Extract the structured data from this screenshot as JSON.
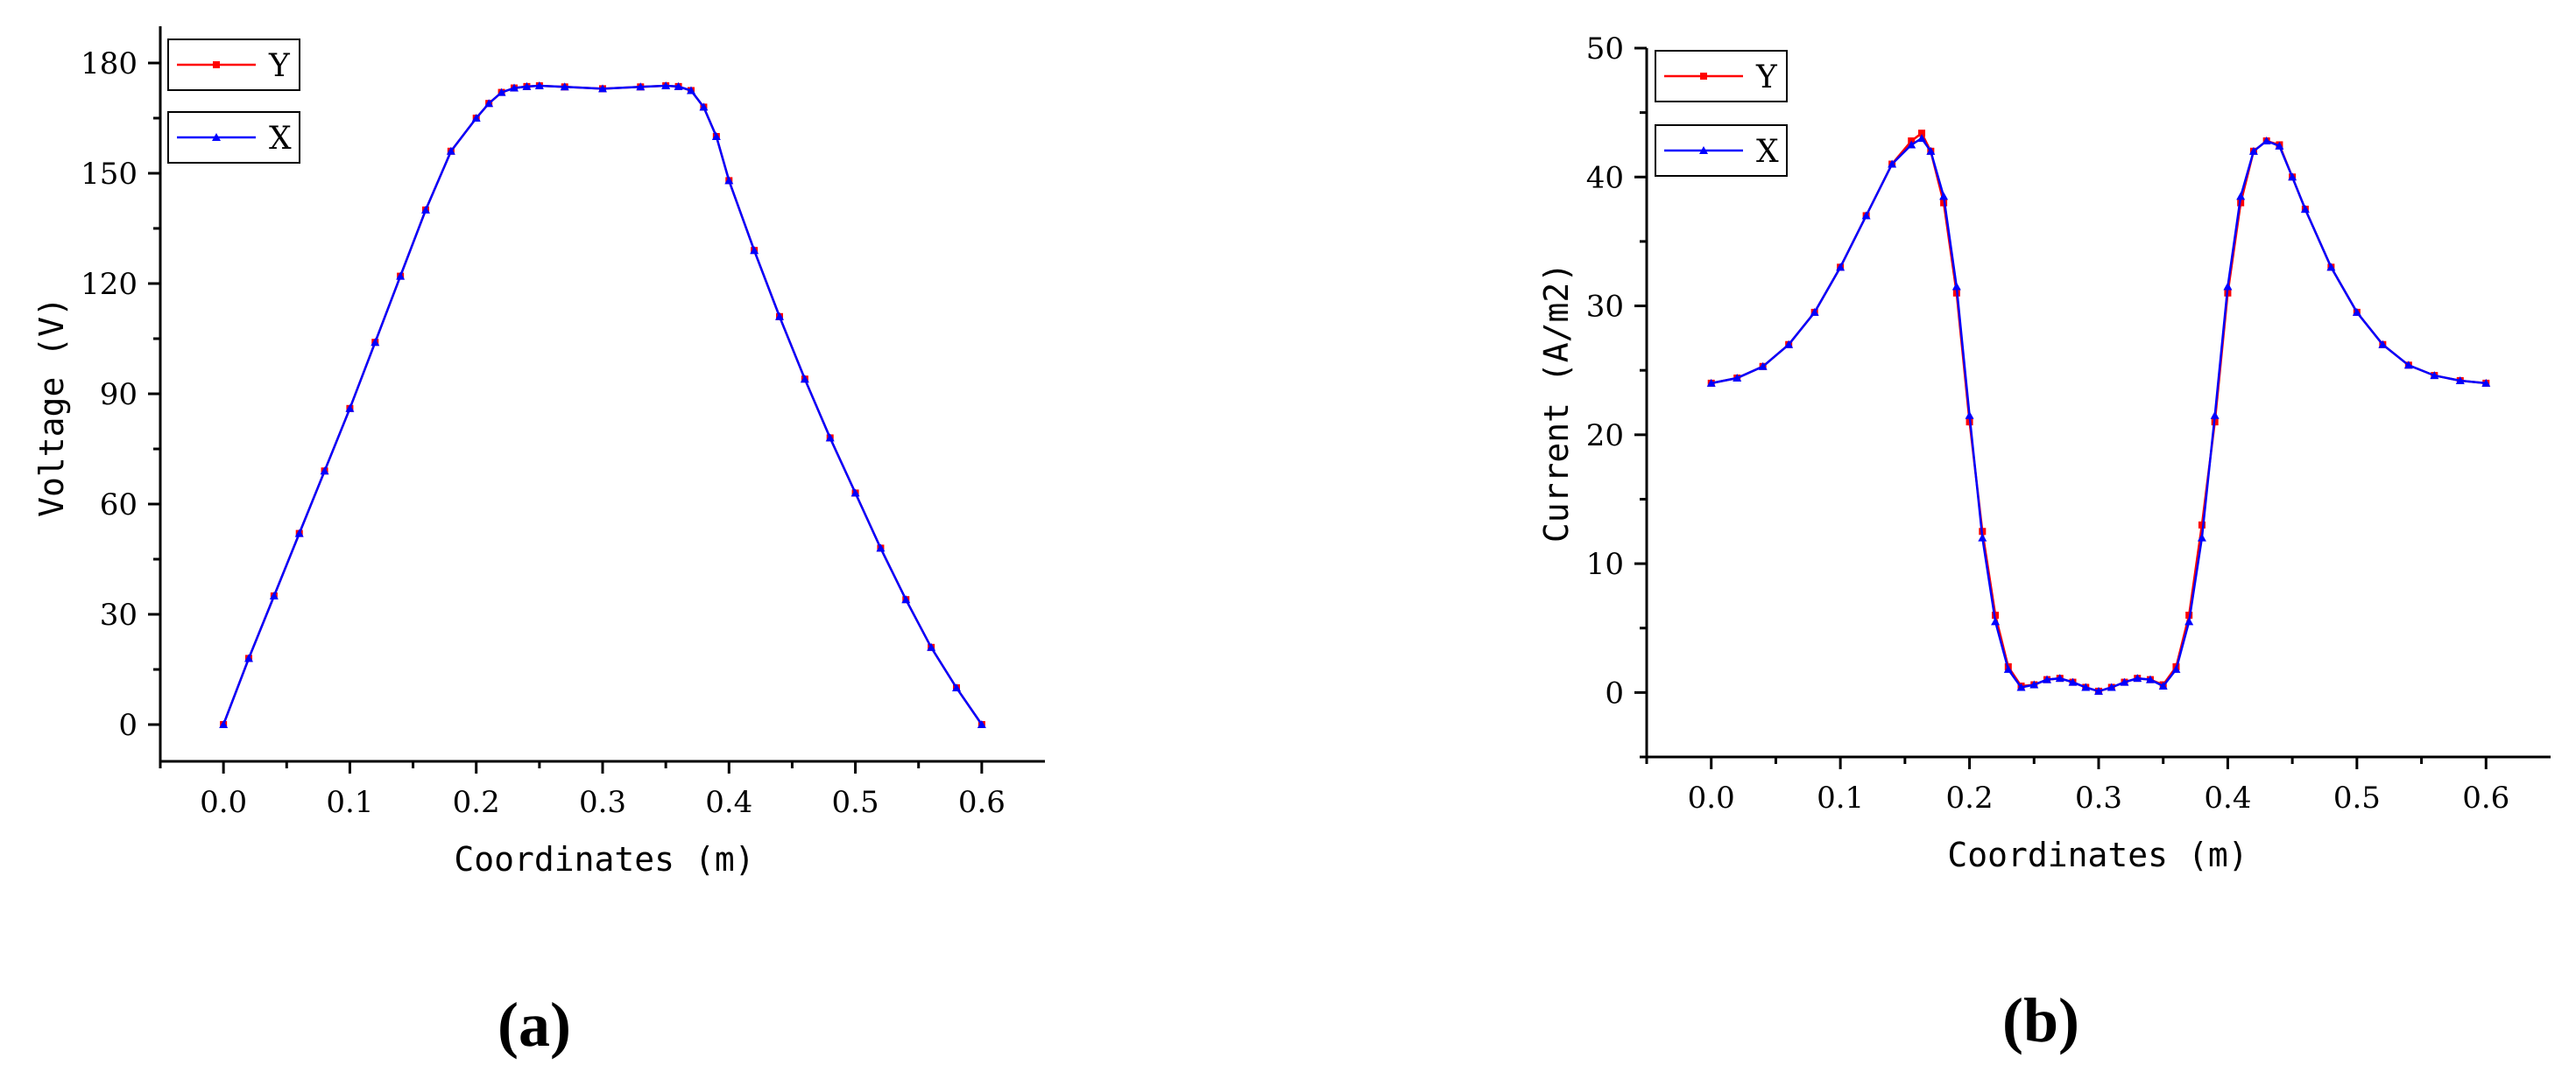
{
  "chart_data": [
    {
      "type": "line",
      "panel_label": "(a)",
      "xlabel": "Coordinates (m)",
      "ylabel": "Voltage (V)",
      "xlim": [
        -0.05,
        0.65
      ],
      "ylim": [
        -10,
        190
      ],
      "xticks": [
        0.0,
        0.1,
        0.2,
        0.3,
        0.4,
        0.5,
        0.6
      ],
      "xtick_labels": [
        "0.0",
        "0.1",
        "0.2",
        "0.3",
        "0.4",
        "0.5",
        "0.6"
      ],
      "yticks": [
        0,
        30,
        60,
        90,
        120,
        150,
        180
      ],
      "ytick_labels": [
        "0",
        "30",
        "60",
        "90",
        "120",
        "150",
        "180"
      ],
      "grid": false,
      "legend_position": "top-left",
      "series": [
        {
          "name": "Y",
          "color": "#ff0000",
          "marker": "square",
          "x": [
            0.0,
            0.02,
            0.04,
            0.06,
            0.08,
            0.1,
            0.12,
            0.14,
            0.16,
            0.18,
            0.2,
            0.21,
            0.22,
            0.23,
            0.24,
            0.25,
            0.27,
            0.3,
            0.33,
            0.35,
            0.36,
            0.37,
            0.38,
            0.39,
            0.4,
            0.42,
            0.44,
            0.46,
            0.48,
            0.5,
            0.52,
            0.54,
            0.56,
            0.58,
            0.6
          ],
          "y": [
            0,
            18,
            35,
            52,
            69,
            86,
            104,
            122,
            140,
            156,
            165,
            169,
            172,
            173.2,
            173.6,
            173.8,
            173.5,
            173,
            173.5,
            173.8,
            173.6,
            172.5,
            168,
            160,
            148,
            129,
            111,
            94,
            78,
            63,
            48,
            34,
            21,
            10,
            0
          ]
        },
        {
          "name": "X",
          "color": "#0000ff",
          "marker": "triangle",
          "x": [
            0.0,
            0.02,
            0.04,
            0.06,
            0.08,
            0.1,
            0.12,
            0.14,
            0.16,
            0.18,
            0.2,
            0.21,
            0.22,
            0.23,
            0.24,
            0.25,
            0.27,
            0.3,
            0.33,
            0.35,
            0.36,
            0.37,
            0.38,
            0.39,
            0.4,
            0.42,
            0.44,
            0.46,
            0.48,
            0.5,
            0.52,
            0.54,
            0.56,
            0.58,
            0.6
          ],
          "y": [
            0,
            18,
            35,
            52,
            69,
            86,
            104,
            122,
            140,
            156,
            165,
            169,
            172,
            173.2,
            173.6,
            173.8,
            173.5,
            173,
            173.5,
            173.8,
            173.6,
            172.5,
            168,
            160,
            148,
            129,
            111,
            94,
            78,
            63,
            48,
            34,
            21,
            10,
            0
          ]
        }
      ]
    },
    {
      "type": "line",
      "panel_label": "(b)",
      "xlabel": "Coordinates (m)",
      "ylabel": "Current (A/m2)",
      "xlim": [
        -0.05,
        0.65
      ],
      "ylim": [
        -5,
        50
      ],
      "xticks": [
        0.0,
        0.1,
        0.2,
        0.3,
        0.4,
        0.5,
        0.6
      ],
      "xtick_labels": [
        "0.0",
        "0.1",
        "0.2",
        "0.3",
        "0.4",
        "0.5",
        "0.6"
      ],
      "yticks": [
        0,
        10,
        20,
        30,
        40,
        50
      ],
      "ytick_labels": [
        "0",
        "10",
        "20",
        "30",
        "40",
        "50"
      ],
      "grid": false,
      "legend_position": "top-left",
      "series": [
        {
          "name": "Y",
          "color": "#ff0000",
          "marker": "square",
          "x": [
            0.0,
            0.02,
            0.04,
            0.06,
            0.08,
            0.1,
            0.12,
            0.14,
            0.155,
            0.163,
            0.17,
            0.18,
            0.19,
            0.2,
            0.21,
            0.22,
            0.23,
            0.24,
            0.25,
            0.26,
            0.27,
            0.28,
            0.29,
            0.3,
            0.31,
            0.32,
            0.33,
            0.34,
            0.35,
            0.36,
            0.37,
            0.38,
            0.39,
            0.4,
            0.41,
            0.42,
            0.43,
            0.44,
            0.45,
            0.46,
            0.48,
            0.5,
            0.52,
            0.54,
            0.56,
            0.58,
            0.6
          ],
          "y": [
            24,
            24.4,
            25.3,
            27,
            29.5,
            33,
            37,
            41,
            42.8,
            43.4,
            42,
            38,
            31,
            21,
            12.5,
            6,
            2,
            0.5,
            0.6,
            1,
            1.1,
            0.8,
            0.4,
            0.1,
            0.4,
            0.8,
            1.1,
            1,
            0.6,
            2,
            6,
            13,
            21,
            31,
            38,
            42,
            42.8,
            42.5,
            40,
            37.5,
            33,
            29.5,
            27,
            25.4,
            24.6,
            24.2,
            24
          ]
        },
        {
          "name": "X",
          "color": "#0000ff",
          "marker": "triangle",
          "x": [
            0.0,
            0.02,
            0.04,
            0.06,
            0.08,
            0.1,
            0.12,
            0.14,
            0.155,
            0.163,
            0.17,
            0.18,
            0.19,
            0.2,
            0.21,
            0.22,
            0.23,
            0.24,
            0.25,
            0.26,
            0.27,
            0.28,
            0.29,
            0.3,
            0.31,
            0.32,
            0.33,
            0.34,
            0.35,
            0.36,
            0.37,
            0.38,
            0.39,
            0.4,
            0.41,
            0.42,
            0.43,
            0.44,
            0.45,
            0.46,
            0.48,
            0.5,
            0.52,
            0.54,
            0.56,
            0.58,
            0.6
          ],
          "y": [
            24,
            24.4,
            25.3,
            27,
            29.5,
            33,
            37,
            41,
            42.5,
            43,
            42,
            38.5,
            31.5,
            21.5,
            12,
            5.5,
            1.8,
            0.4,
            0.6,
            1,
            1.1,
            0.8,
            0.4,
            0.1,
            0.4,
            0.8,
            1.1,
            1,
            0.5,
            1.8,
            5.5,
            12,
            21.5,
            31.5,
            38.5,
            42,
            42.8,
            42.4,
            40,
            37.5,
            33,
            29.5,
            27,
            25.4,
            24.6,
            24.2,
            24
          ]
        }
      ]
    }
  ]
}
